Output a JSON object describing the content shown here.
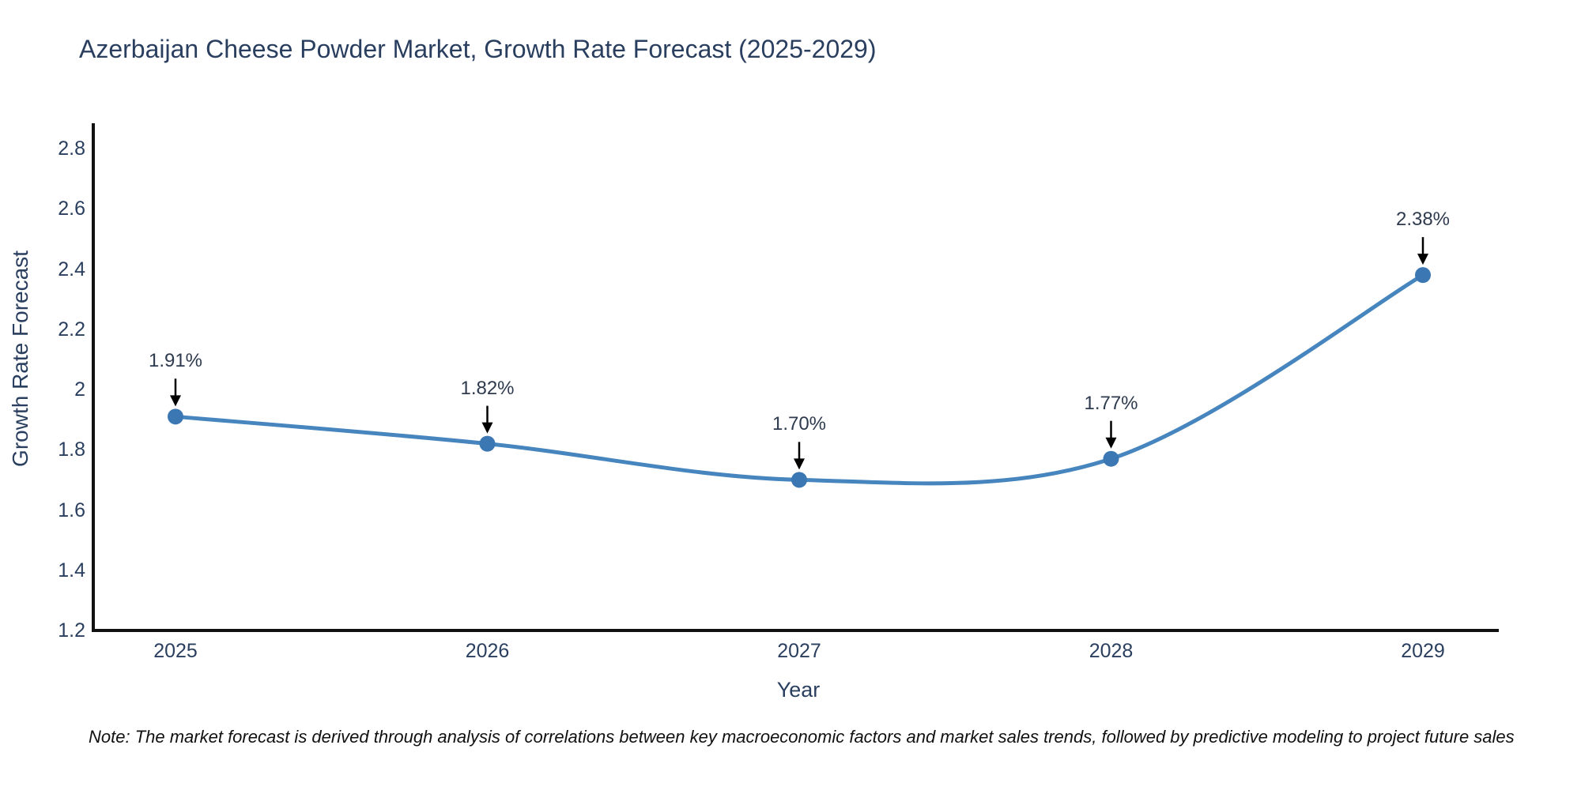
{
  "title": "Azerbaijan Cheese Powder Market, Growth Rate Forecast (2025-2029)",
  "note": "Note: The market forecast is derived through analysis of correlations between key macroeconomic factors and market sales trends, followed by predictive modeling to project future sales",
  "colors": {
    "line": "#4685bd",
    "marker": "#3b77b2",
    "axis": "#111111",
    "arrow": "#000000",
    "text": "#2a3f5f",
    "background": "#ffffff"
  },
  "chart_data": {
    "type": "line",
    "title": "Azerbaijan Cheese Powder Market, Growth Rate Forecast (2025-2029)",
    "x": [
      2025,
      2026,
      2027,
      2028,
      2029
    ],
    "series": [
      {
        "name": "Growth Rate Forecast",
        "values": [
          1.91,
          1.82,
          1.7,
          1.77,
          2.38
        ]
      }
    ],
    "point_labels": [
      "1.91%",
      "1.82%",
      "1.70%",
      "1.77%",
      "2.38%"
    ],
    "xlabel": "Year",
    "ylabel": "Growth Rate Forecast",
    "ylim": [
      1.2,
      2.8
    ],
    "yticks": [
      "1.2",
      "1.4",
      "1.6",
      "1.8",
      "2",
      "2.2",
      "2.4",
      "2.6",
      "2.8"
    ],
    "xticks": [
      "2025",
      "2026",
      "2027",
      "2028",
      "2029"
    ],
    "line_shape": "spline",
    "marker": "circle",
    "grid": false,
    "legend": "none"
  }
}
